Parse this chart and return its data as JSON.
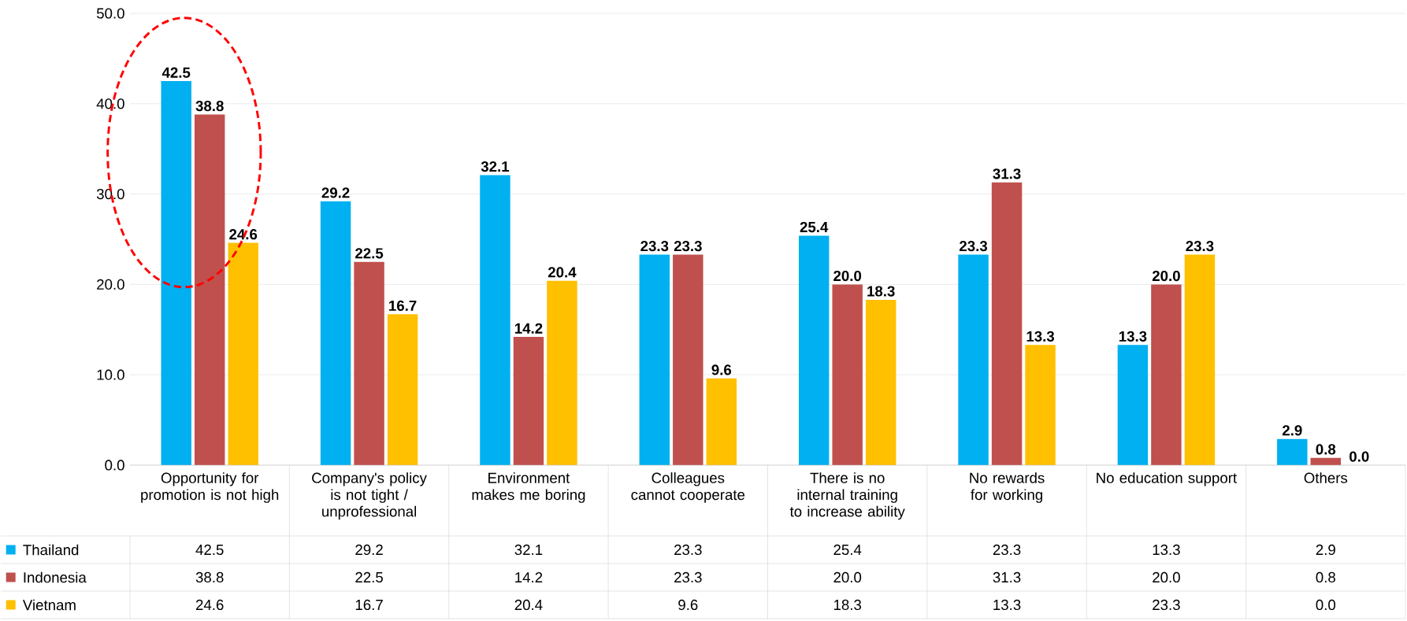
{
  "chart_data": {
    "type": "bar",
    "categories": [
      "Opportunity for promotion is not high",
      "Company's policy is not tight / unprofessional",
      "Environment makes me boring",
      "Colleagues cannot cooperate",
      "There is no internal training to increase ability",
      "No rewards for working",
      "No education support",
      "Others"
    ],
    "series": [
      {
        "name": "Thailand",
        "color": "#00b0f0",
        "values": [
          42.5,
          29.2,
          32.1,
          23.3,
          25.4,
          23.3,
          13.3,
          2.9
        ],
        "value_labels": [
          "42.5",
          "29.2",
          "32.1",
          "23.3",
          "25.4",
          "23.3",
          "13.3",
          "2.9"
        ]
      },
      {
        "name": "Indonesia",
        "color": "#c0504d",
        "values": [
          38.8,
          22.5,
          14.2,
          23.3,
          20.0,
          31.3,
          20.0,
          0.8
        ],
        "value_labels": [
          "38.8",
          "22.5",
          "14.2",
          "23.3",
          "20.0",
          "31.3",
          "20.0",
          "0.8"
        ]
      },
      {
        "name": "Vietnam",
        "color": "#ffc000",
        "values": [
          24.6,
          16.7,
          20.4,
          9.6,
          18.3,
          13.3,
          23.3,
          0.0
        ],
        "value_labels": [
          "24.6",
          "16.7",
          "20.4",
          "9.6",
          "18.3",
          "13.3",
          "23.3",
          "0.0"
        ]
      }
    ],
    "ylim": [
      0,
      50
    ],
    "yticks": [
      {
        "value": 0,
        "label": "0.0"
      },
      {
        "value": 10,
        "label": "10.0"
      },
      {
        "value": 20,
        "label": "20.0"
      },
      {
        "value": 30,
        "label": "30.0"
      },
      {
        "value": 40,
        "label": "40.0"
      },
      {
        "value": 50,
        "label": "50.0"
      }
    ],
    "grid": "y",
    "legend": "bottom left"
  }
}
